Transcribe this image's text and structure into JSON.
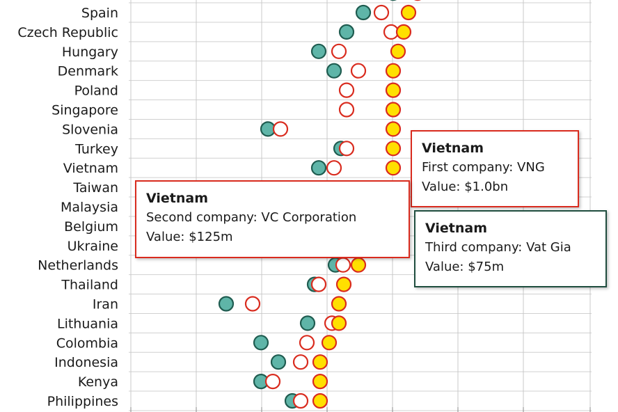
{
  "chart_data": {
    "type": "scatter",
    "categories": [
      "Spain",
      "Czech Republic",
      "Hungary",
      "Denmark",
      "Poland",
      "Singapore",
      "Slovenia",
      "Turkey",
      "Vietnam",
      "Taiwan",
      "Malaysia",
      "Belgium",
      "Ukraine",
      "Netherlands",
      "Thailand",
      "Iran",
      "Lithuania",
      "Colombia",
      "Indonesia",
      "Kenya",
      "Philippines"
    ],
    "series": [
      {
        "color": "#5fb5a8",
        "stroke": "#1f5c50",
        "fill_style": "solid",
        "values": [
          522,
          498,
          458,
          480,
          null,
          null,
          385,
          490,
          458,
          null,
          null,
          null,
          null,
          482,
          452,
          325,
          442,
          375,
          400,
          375,
          420
        ]
      },
      {
        "color": "#ffffff",
        "stroke": "#d92b1e",
        "fill_style": "hollow",
        "values": [
          548,
          562,
          487,
          515,
          498,
          498,
          403,
          498,
          480,
          null,
          null,
          null,
          null,
          493,
          458,
          363,
          477,
          441,
          432,
          392,
          432
        ]
      },
      {
        "color": "#ffe000",
        "stroke": "#d92b1e",
        "fill_style": "solid",
        "values": [
          587,
          580,
          572,
          565,
          565,
          565,
          565,
          565,
          565,
          null,
          null,
          null,
          null,
          515,
          494,
          487,
          487,
          473,
          460,
          460,
          460
        ]
      }
    ],
    "partial_top_row": [
      {
        "series": 0,
        "x": 565
      },
      {
        "series": 2,
        "x": 600
      }
    ],
    "grid": true
  },
  "tooltips": [
    {
      "title": "Vietnam",
      "line1": "First company: VNG",
      "line2": "Value: $1.0bn",
      "border": "#d92b1e"
    },
    {
      "title": "Vietnam",
      "line1": "Second company: VC Corporation",
      "line2": "Value: $125m",
      "border": "#d92b1e"
    },
    {
      "title": "Vietnam",
      "line1": "Third company: Vat Gia",
      "line2": "Value: $75m",
      "border": "#1f4d3e"
    }
  ]
}
